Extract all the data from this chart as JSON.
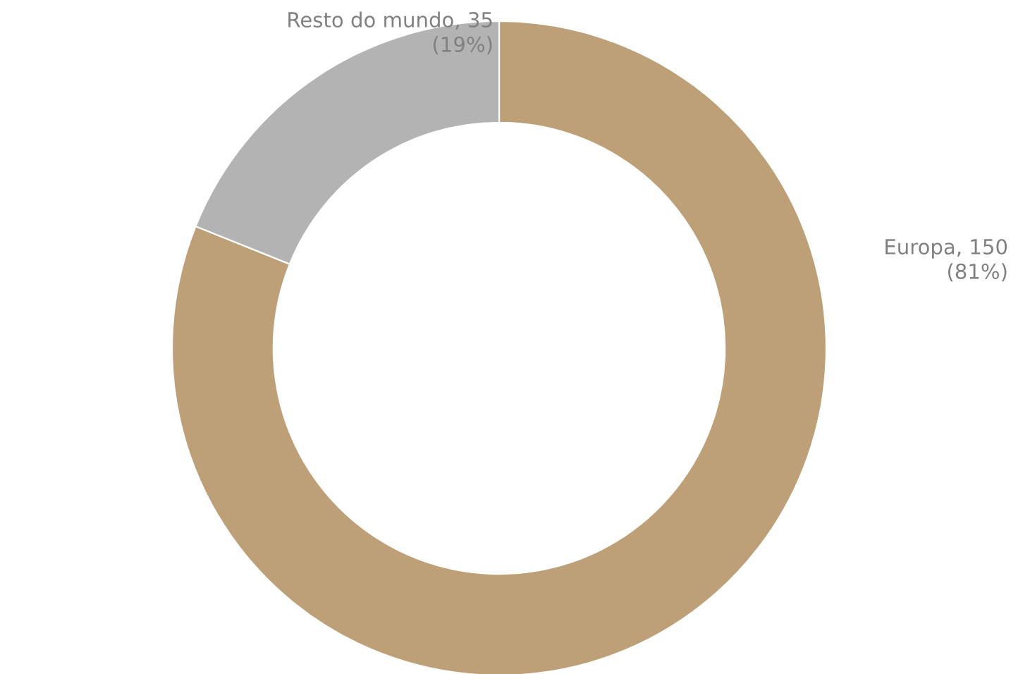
{
  "chart_data": {
    "type": "donut",
    "categories": [
      "Europa",
      "Resto do mundo"
    ],
    "values": [
      150,
      35
    ],
    "value_labels": [
      "150\n(81%)",
      "35\n(19%)"
    ],
    "colors": [
      "#bea078",
      "#b3b3b3"
    ],
    "legend": false
  }
}
